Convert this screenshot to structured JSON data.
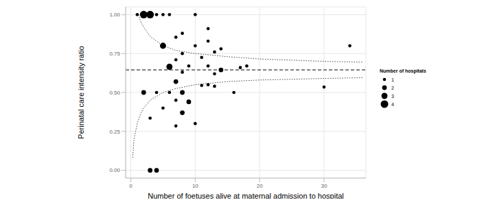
{
  "chart_data": {
    "type": "scatter",
    "x_label": "Number of foetuses alive at maternal admission to hospital",
    "y_label": "Perinatal care intensity ratio",
    "xlim": [
      -0.8,
      36.5
    ],
    "xticks": [
      0,
      10,
      20,
      30
    ],
    "ylim": [
      -0.05,
      1.05
    ],
    "yticks": [
      {
        "value": 0,
        "label": "0.00"
      },
      {
        "value": 0.25,
        "label": "0.25"
      },
      {
        "value": 0.5,
        "label": "0.50"
      },
      {
        "value": 0.75,
        "label": "0.75"
      },
      {
        "value": 1,
        "label": "1.00"
      }
    ],
    "grid": true,
    "color": "#000000",
    "marker": "circle",
    "points": {
      "x": [
        1,
        2,
        3,
        4,
        5,
        6,
        10,
        5,
        12,
        8,
        7,
        10,
        12,
        13,
        14,
        8,
        7,
        6,
        11,
        9,
        12,
        14,
        17,
        18,
        13,
        8,
        34,
        30,
        12,
        11,
        13,
        2,
        4,
        6,
        8,
        16,
        7,
        9,
        5,
        8,
        3,
        7,
        10,
        3,
        4,
        7
      ],
      "y": [
        1,
        1,
        1,
        1,
        1,
        1,
        1,
        0.8,
        0.91,
        0.88,
        0.855,
        0.8,
        0.83,
        0.76,
        0.78,
        0.75,
        0.71,
        0.665,
        0.725,
        0.67,
        0.67,
        0.645,
        0.66,
        0.67,
        0.62,
        0.63,
        0.8,
        0.535,
        0.55,
        0.545,
        0.54,
        0.5,
        0.5,
        0.5,
        0.5,
        0.5,
        0.45,
        0.44,
        0.4,
        0.37,
        0.335,
        0.285,
        0.3,
        0,
        0,
        0.57
      ],
      "size": [
        1,
        4,
        4,
        1,
        1,
        1,
        1,
        3,
        1,
        1,
        1,
        1,
        1,
        1,
        1,
        1,
        1,
        3,
        1,
        1,
        1,
        2,
        1,
        1,
        1,
        1,
        1,
        1,
        1,
        1,
        1,
        2,
        1,
        1,
        2,
        1,
        1,
        2,
        1,
        2,
        1,
        1,
        1,
        2,
        2,
        2
      ]
    },
    "size_legend": {
      "title": "Number of hospitals",
      "values": [
        1,
        2,
        3,
        4
      ]
    },
    "reference_line": {
      "value": 0.645,
      "line_style": "dashed"
    },
    "upper_limit": {
      "x": [
        1.2,
        1.5,
        2,
        3,
        5,
        7,
        10,
        15,
        20,
        30,
        36
      ],
      "y": [
        1,
        0.96,
        0.92,
        0.86,
        0.8,
        0.77,
        0.75,
        0.73,
        0.715,
        0.7,
        0.695
      ],
      "line_style": "dotted"
    },
    "lower_limit": {
      "x": [
        0.3,
        0.5,
        1,
        1.5,
        2,
        3,
        5,
        7,
        10,
        15,
        20,
        30,
        36
      ],
      "y": [
        0.08,
        0.2,
        0.3,
        0.36,
        0.4,
        0.45,
        0.5,
        0.525,
        0.55,
        0.57,
        0.58,
        0.59,
        0.595
      ],
      "line_style": "dotted"
    }
  }
}
